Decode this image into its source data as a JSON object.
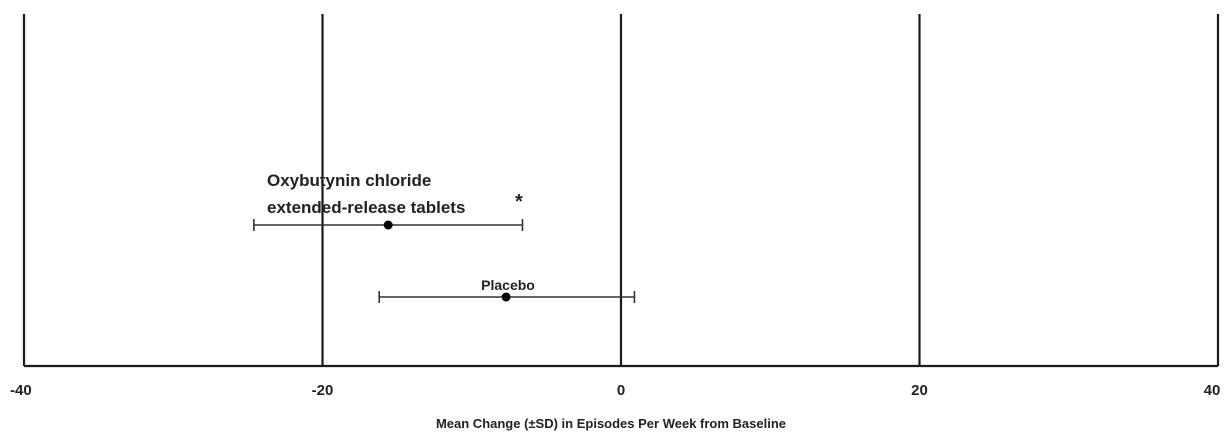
{
  "chart_data": {
    "type": "scatter",
    "title": "",
    "xlabel": "Mean Change (±SD) in Episodes Per Week from Baseline",
    "ylabel": "",
    "xlim": [
      -40,
      40
    ],
    "x_ticks": [
      -40,
      -20,
      0,
      20,
      40
    ],
    "x_tick_labels": [
      "-40",
      "-20",
      "0",
      "20",
      "40"
    ],
    "grid": true,
    "series": [
      {
        "name": "Oxybutynin chloride extended-release tablets",
        "label_lines": [
          "Oxybutynin chloride",
          "extended-release tablets"
        ],
        "annotation": "*",
        "x": -15.6,
        "sd_low": -24.6,
        "sd_high": -6.6
      },
      {
        "name": "Placebo",
        "label_lines": [
          "Placebo"
        ],
        "annotation": "",
        "x": -7.7,
        "sd_low": -16.2,
        "sd_high": 0.9
      }
    ]
  }
}
